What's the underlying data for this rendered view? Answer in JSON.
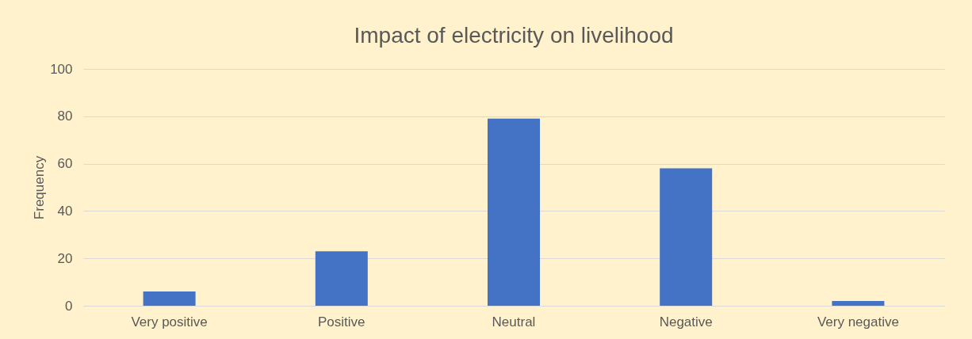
{
  "chart_data": {
    "type": "bar",
    "title": "Impact of electricity on livelihood",
    "ylabel": "Frequency",
    "categories": [
      "Very positive",
      "Positive",
      "Neutral",
      "Negative",
      "Very negative"
    ],
    "values": [
      6,
      23,
      79,
      58,
      2
    ],
    "color": "#4472c4",
    "ylim": [
      0,
      100
    ],
    "yticks": [
      0,
      20,
      40,
      60,
      80,
      100
    ],
    "grid": "y"
  }
}
